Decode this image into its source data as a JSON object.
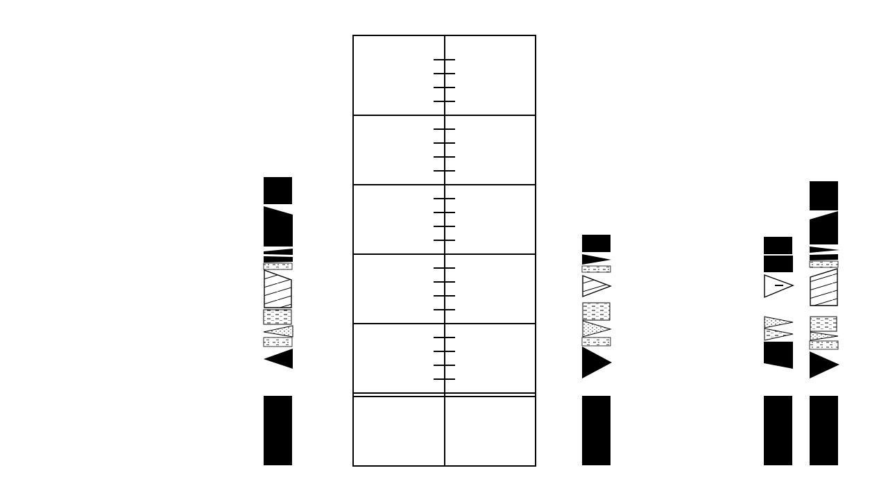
{
  "diagram": {
    "type": "stratigraphic-correlation",
    "colors": {
      "background": "#ffffff",
      "ink": "#000000"
    },
    "scale_column": {
      "sections": 5,
      "ticks_per_section": 4,
      "has_base_block": true
    },
    "logs": [
      {
        "id": "log-1",
        "layers": [
          {
            "lithology": "solid-black",
            "shape": "block"
          },
          {
            "lithology": "solid-black",
            "shape": "wedge"
          },
          {
            "lithology": "solid-black",
            "shape": "thin-wedge"
          },
          {
            "lithology": "solid-black",
            "shape": "thin-block"
          },
          {
            "lithology": "dashed-dots",
            "shape": "block"
          },
          {
            "lithology": "diagonal-hatch",
            "shape": "wedge"
          },
          {
            "lithology": "dashed-lines",
            "shape": "block"
          },
          {
            "lithology": "dotted",
            "shape": "wedge"
          },
          {
            "lithology": "dashed-dots",
            "shape": "block"
          },
          {
            "lithology": "solid-black",
            "shape": "wedge"
          },
          {
            "lithology": "solid-black",
            "shape": "base-block"
          }
        ]
      },
      {
        "id": "log-2",
        "layers": [
          {
            "lithology": "solid-black",
            "shape": "block"
          },
          {
            "lithology": "solid-black",
            "shape": "wedge"
          },
          {
            "lithology": "dashed-dots",
            "shape": "block"
          },
          {
            "lithology": "diagonal-hatch",
            "shape": "wedge"
          },
          {
            "lithology": "dashed-lines",
            "shape": "block"
          },
          {
            "lithology": "dotted",
            "shape": "wedge"
          },
          {
            "lithology": "dashed-dots",
            "shape": "block"
          },
          {
            "lithology": "solid-black",
            "shape": "wedge"
          },
          {
            "lithology": "solid-black",
            "shape": "base-block"
          }
        ]
      },
      {
        "id": "log-3",
        "layers": [
          {
            "lithology": "solid-black",
            "shape": "block"
          },
          {
            "lithology": "solid-black",
            "shape": "block"
          },
          {
            "lithology": "outline-dash",
            "shape": "wedge"
          },
          {
            "lithology": "dotted",
            "shape": "wedge"
          },
          {
            "lithology": "dashed-lines",
            "shape": "wedge"
          },
          {
            "lithology": "solid-black",
            "shape": "block"
          },
          {
            "lithology": "solid-black",
            "shape": "base-block"
          }
        ]
      },
      {
        "id": "log-4",
        "layers": [
          {
            "lithology": "solid-black",
            "shape": "block"
          },
          {
            "lithology": "solid-black",
            "shape": "wedge"
          },
          {
            "lithology": "solid-black",
            "shape": "thin-wedge"
          },
          {
            "lithology": "solid-black",
            "shape": "thin-block"
          },
          {
            "lithology": "dashed-dots",
            "shape": "block"
          },
          {
            "lithology": "diagonal-hatch",
            "shape": "block"
          },
          {
            "lithology": "dashed-lines",
            "shape": "block"
          },
          {
            "lithology": "dotted",
            "shape": "block"
          },
          {
            "lithology": "dashed-dots",
            "shape": "block"
          },
          {
            "lithology": "solid-black",
            "shape": "wedge"
          },
          {
            "lithology": "solid-black",
            "shape": "base-block"
          }
        ]
      }
    ]
  }
}
